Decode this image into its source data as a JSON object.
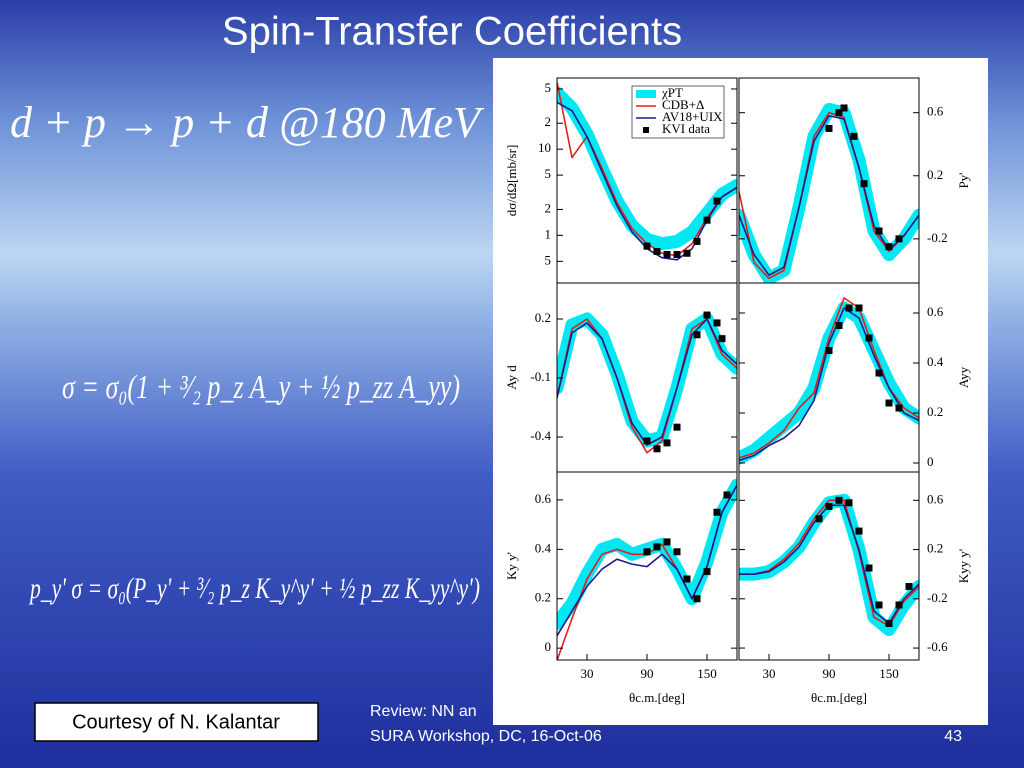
{
  "slide": {
    "title": "Spin-Transfer Coefficients",
    "equations": [
      "d + p → p + d  @180 MeV",
      "σ = σ₀(1 + ³⁄₂ p_z A_y + ½ p_zz A_yy)",
      "p_y' σ = σ₀(P_y' + ³⁄₂ p_z K_y^y' + ½ p_zz K_yy^y')"
    ],
    "courtesy": "Courtesy of N. Kalantar",
    "footer": [
      "Review: NN an",
      "SURA Workshop, DC, 16-Oct-06"
    ],
    "page": "43"
  },
  "chart_data": [
    {
      "type": "line",
      "ylabel": "dσ/dΩ[mb/sr]",
      "log": true,
      "xlim": [
        0,
        180
      ],
      "ylim": [
        0.28,
        67
      ],
      "yticks": [
        {
          "value": 50,
          "label": "5"
        },
        {
          "value": 20,
          "label": "2"
        },
        10,
        {
          "value": 5,
          "label": "5"
        },
        {
          "value": 2,
          "label": "2"
        },
        1,
        {
          "value": 0.5,
          "label": "5"
        }
      ],
      "x": [
        0,
        15,
        30,
        45,
        60,
        75,
        90,
        105,
        120,
        135,
        150,
        165,
        180
      ],
      "series": [
        {
          "name": "χPT",
          "color": "#00e8f2",
          "band": true,
          "values": [
            45,
            30,
            15,
            6,
            2.5,
            1.3,
            0.9,
            0.8,
            0.85,
            1.1,
            1.8,
            3.0,
            3.8
          ]
        },
        {
          "name": "CDB+Δ",
          "color": "#e0201c",
          "values": [
            60,
            8,
            14,
            6,
            2.4,
            1.2,
            0.8,
            0.62,
            0.58,
            0.8,
            1.6,
            2.8,
            3.6
          ]
        },
        {
          "name": "AV18+UIX",
          "color": "#1c1c8c",
          "values": [
            35,
            28,
            14,
            5.5,
            2.2,
            1.1,
            0.7,
            0.55,
            0.52,
            0.7,
            1.5,
            2.8,
            3.6
          ]
        },
        {
          "name": "KVI data",
          "color": "#000000",
          "type": "scatter",
          "x": [
            90,
            100,
            110,
            120,
            130,
            140,
            150,
            160
          ],
          "values": [
            0.75,
            0.65,
            0.6,
            0.6,
            0.62,
            0.85,
            1.5,
            2.5
          ]
        }
      ]
    },
    {
      "type": "line",
      "ylabel": "Py'",
      "xlim": [
        0,
        180
      ],
      "ylim": [
        -0.48,
        0.82
      ],
      "yticks": [
        0.6,
        0.2,
        -0.2
      ],
      "x": [
        0,
        15,
        30,
        45,
        60,
        75,
        90,
        105,
        120,
        135,
        150,
        165,
        180
      ],
      "series": [
        {
          "color": "#00e8f2",
          "band": true,
          "values": [
            -0.05,
            -0.3,
            -0.45,
            -0.4,
            0.0,
            0.45,
            0.62,
            0.6,
            0.3,
            -0.15,
            -0.3,
            -0.2,
            -0.05
          ]
        },
        {
          "color": "#e0201c",
          "values": [
            0.1,
            -0.35,
            -0.45,
            -0.4,
            0.0,
            0.45,
            0.6,
            0.57,
            0.25,
            -0.15,
            -0.28,
            -0.18,
            -0.05
          ]
        },
        {
          "color": "#1c1c8c",
          "values": [
            -0.05,
            -0.3,
            -0.43,
            -0.38,
            0.0,
            0.42,
            0.58,
            0.56,
            0.25,
            -0.12,
            -0.27,
            -0.18,
            -0.05
          ]
        },
        {
          "color": "#000000",
          "type": "scatter",
          "x": [
            90,
            100,
            105,
            115,
            125,
            140,
            150,
            160
          ],
          "values": [
            0.5,
            0.6,
            0.63,
            0.45,
            0.15,
            -0.15,
            -0.25,
            -0.2
          ]
        }
      ]
    },
    {
      "type": "line",
      "ylabel": "Ay d",
      "xlim": [
        0,
        180
      ],
      "ylim": [
        -0.578,
        0.383
      ],
      "yticks": [
        0.2,
        -0.1,
        -0.4
      ],
      "x": [
        0,
        15,
        30,
        45,
        60,
        75,
        90,
        105,
        120,
        135,
        150,
        165,
        180
      ],
      "series": [
        {
          "color": "#00e8f2",
          "band": true,
          "values": [
            -0.15,
            0.17,
            0.2,
            0.12,
            -0.08,
            -0.32,
            -0.42,
            -0.4,
            -0.15,
            0.15,
            0.2,
            0.02,
            -0.05
          ]
        },
        {
          "color": "#e0201c",
          "values": [
            -0.2,
            0.15,
            0.2,
            0.1,
            -0.1,
            -0.35,
            -0.48,
            -0.42,
            -0.15,
            0.15,
            0.2,
            0.02,
            -0.05
          ]
        },
        {
          "color": "#1c1c8c",
          "values": [
            -0.2,
            0.13,
            0.18,
            0.1,
            -0.1,
            -0.33,
            -0.44,
            -0.4,
            -0.15,
            0.12,
            0.2,
            0.04,
            -0.03
          ]
        },
        {
          "color": "#000000",
          "type": "scatter",
          "x": [
            90,
            100,
            110,
            120,
            140,
            150,
            160,
            165
          ],
          "values": [
            -0.42,
            -0.46,
            -0.43,
            -0.35,
            0.12,
            0.22,
            0.18,
            0.1
          ]
        }
      ]
    },
    {
      "type": "line",
      "ylabel": "Ayy",
      "xlim": [
        0,
        180
      ],
      "ylim": [
        -0.036,
        0.72
      ],
      "yticks": [
        0.6,
        0.4,
        0.2,
        0.0
      ],
      "x": [
        0,
        15,
        30,
        45,
        60,
        75,
        90,
        105,
        120,
        135,
        150,
        165,
        180
      ],
      "series": [
        {
          "color": "#00e8f2",
          "band": true,
          "values": [
            0.02,
            0.05,
            0.1,
            0.15,
            0.2,
            0.3,
            0.5,
            0.62,
            0.58,
            0.45,
            0.32,
            0.22,
            0.18
          ]
        },
        {
          "color": "#e0201c",
          "values": [
            0.02,
            0.04,
            0.08,
            0.13,
            0.22,
            0.28,
            0.5,
            0.66,
            0.62,
            0.45,
            0.3,
            0.22,
            0.18
          ]
        },
        {
          "color": "#1c1c8c",
          "values": [
            0.01,
            0.03,
            0.07,
            0.1,
            0.15,
            0.25,
            0.48,
            0.62,
            0.58,
            0.43,
            0.3,
            0.2,
            0.17
          ]
        },
        {
          "color": "#000000",
          "type": "scatter",
          "x": [
            90,
            100,
            110,
            120,
            130,
            140,
            150,
            160
          ],
          "values": [
            0.45,
            0.55,
            0.62,
            0.62,
            0.5,
            0.36,
            0.24,
            0.22
          ]
        }
      ]
    },
    {
      "type": "line",
      "ylabel": "Ky y'",
      "xlabel": "θc.m.[deg]",
      "xlim": [
        0,
        180
      ],
      "ylim": [
        -0.048,
        0.713
      ],
      "yticks": [
        0.6,
        0.4,
        0.2,
        0.0
      ],
      "xticks": [
        30,
        90,
        150
      ],
      "x": [
        0,
        15,
        30,
        45,
        60,
        75,
        90,
        105,
        120,
        135,
        150,
        165,
        180
      ],
      "series": [
        {
          "color": "#00e8f2",
          "band": true,
          "values": [
            0.1,
            0.18,
            0.3,
            0.4,
            0.42,
            0.38,
            0.4,
            0.42,
            0.32,
            0.2,
            0.35,
            0.55,
            0.66
          ]
        },
        {
          "color": "#e0201c",
          "values": [
            -0.05,
            0.12,
            0.28,
            0.38,
            0.4,
            0.38,
            0.38,
            0.42,
            0.32,
            0.2,
            0.33,
            0.55,
            0.66
          ]
        },
        {
          "color": "#1c1c8c",
          "values": [
            0.05,
            0.15,
            0.25,
            0.32,
            0.36,
            0.34,
            0.33,
            0.38,
            0.32,
            0.2,
            0.33,
            0.55,
            0.66
          ]
        },
        {
          "color": "#000000",
          "type": "scatter",
          "x": [
            90,
            100,
            110,
            120,
            130,
            140,
            150,
            160,
            170
          ],
          "values": [
            0.39,
            0.41,
            0.43,
            0.39,
            0.28,
            0.2,
            0.31,
            0.55,
            0.62
          ]
        }
      ]
    },
    {
      "type": "line",
      "ylabel": "Kyy y'",
      "xlabel": "θc.m.[deg]",
      "xlim": [
        0,
        180
      ],
      "ylim": [
        -0.697,
        0.83
      ],
      "yticks": [
        0.6,
        0.2,
        -0.2,
        -0.6
      ],
      "xticks": [
        30,
        90,
        150
      ],
      "x": [
        0,
        15,
        30,
        45,
        60,
        75,
        90,
        105,
        120,
        135,
        150,
        165,
        180
      ],
      "series": [
        {
          "color": "#00e8f2",
          "band": true,
          "values": [
            0.0,
            0.0,
            0.02,
            0.1,
            0.22,
            0.42,
            0.58,
            0.6,
            0.2,
            -0.35,
            -0.45,
            -0.25,
            -0.1
          ]
        },
        {
          "color": "#e0201c",
          "values": [
            0.0,
            0.0,
            0.03,
            0.12,
            0.25,
            0.45,
            0.6,
            0.6,
            0.18,
            -0.35,
            -0.42,
            -0.22,
            -0.1
          ]
        },
        {
          "color": "#1c1c8c",
          "values": [
            0.0,
            0.0,
            0.02,
            0.1,
            0.22,
            0.42,
            0.56,
            0.56,
            0.2,
            -0.3,
            -0.4,
            -0.2,
            -0.08
          ]
        },
        {
          "color": "#000000",
          "type": "scatter",
          "x": [
            80,
            90,
            100,
            110,
            120,
            130,
            140,
            150,
            160,
            170
          ],
          "values": [
            0.45,
            0.55,
            0.6,
            0.58,
            0.35,
            0.05,
            -0.25,
            -0.4,
            -0.25,
            -0.1
          ]
        }
      ]
    }
  ]
}
